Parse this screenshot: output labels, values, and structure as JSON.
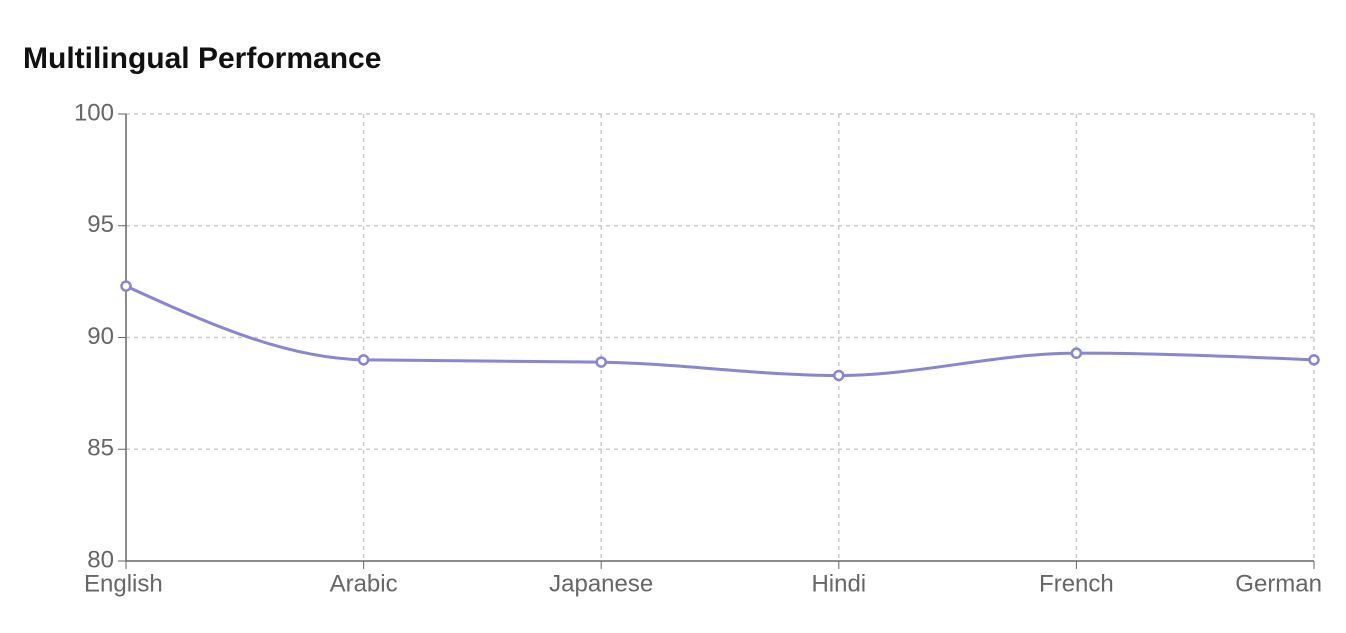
{
  "chart_data": {
    "type": "line",
    "title": "Multilingual Performance",
    "categories": [
      "English",
      "Arabic",
      "Japanese",
      "Hindi",
      "French",
      "German"
    ],
    "series": [
      {
        "color": "#8884d8",
        "values": [
          92.3,
          89.0,
          88.9,
          88.3,
          89.3,
          89.0
        ]
      }
    ],
    "ylim": [
      80,
      100
    ],
    "yticks": [
      80,
      85,
      90,
      95,
      100
    ],
    "grid": true
  }
}
